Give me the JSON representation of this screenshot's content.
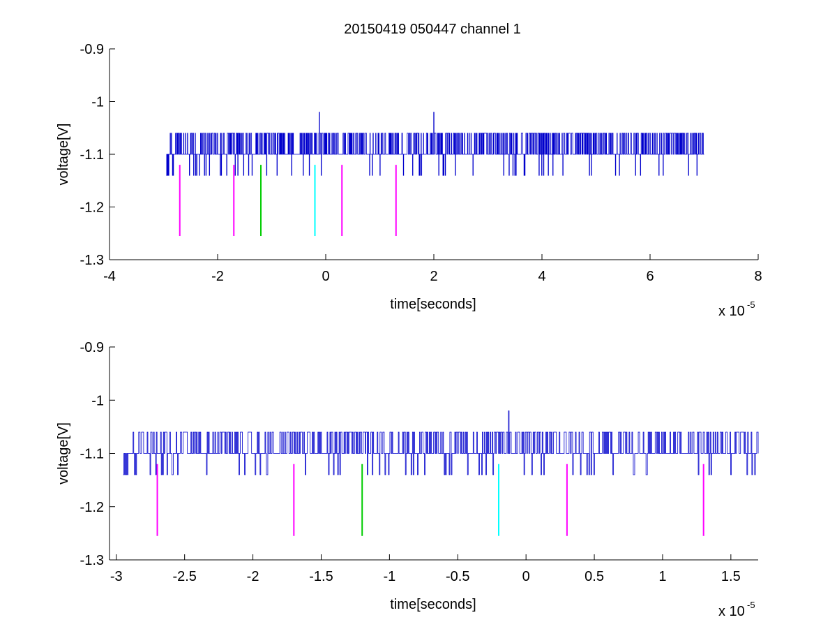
{
  "figure": {
    "title": "20150419 050447 channel 1"
  },
  "chart_data": [
    {
      "type": "line",
      "title": "20150419 050447 channel 1",
      "xlabel": "time[seconds]",
      "ylabel": "voltage[V]",
      "x_multiplier_base": "x 10",
      "x_multiplier_exp": "-5",
      "xlim": [
        -4e-05,
        8e-05
      ],
      "ylim": [
        -1.3,
        -0.9
      ],
      "xticks": [
        -4e-05,
        -2e-05,
        0,
        2e-05,
        4e-05,
        6e-05,
        8e-05
      ],
      "xtick_labels": [
        "-4",
        "-2",
        "0",
        "2",
        "4",
        "6",
        "8"
      ],
      "yticks": [
        -0.9,
        -1.0,
        -1.1,
        -1.2,
        -1.3
      ],
      "ytick_labels": [
        "-0.9",
        "-1",
        "-1.1",
        "-1.2",
        "-1.3"
      ],
      "grid": false,
      "series": [
        {
          "color": "#0000cc",
          "x_start": -2.95e-05,
          "x_end": 7e-05,
          "baseline": -1.1,
          "upper_level": -1.06,
          "lower_level": -1.14,
          "spikes": [
            {
              "x": -1.2e-06,
              "y": -1.02
            },
            {
              "x": 2e-05,
              "y": -1.02
            }
          ]
        }
      ],
      "markers": [
        {
          "x": -2.7e-05,
          "y_top": -1.12,
          "y_bottom": -1.255,
          "color": "#ff00ff"
        },
        {
          "x": -1.7e-05,
          "y_top": -1.12,
          "y_bottom": -1.255,
          "color": "#ff00ff"
        },
        {
          "x": -1.2e-05,
          "y_top": -1.12,
          "y_bottom": -1.255,
          "color": "#00cc00"
        },
        {
          "x": -2e-06,
          "y_top": -1.12,
          "y_bottom": -1.255,
          "color": "#00ffff"
        },
        {
          "x": 3e-06,
          "y_top": -1.12,
          "y_bottom": -1.255,
          "color": "#ff00ff"
        },
        {
          "x": 1.3e-05,
          "y_top": -1.12,
          "y_bottom": -1.255,
          "color": "#ff00ff"
        }
      ]
    },
    {
      "type": "line",
      "title": "",
      "xlabel": "time[seconds]",
      "ylabel": "voltage[V]",
      "x_multiplier_base": "x 10",
      "x_multiplier_exp": "-5",
      "xlim": [
        -3.05e-05,
        1.7e-05
      ],
      "ylim": [
        -1.3,
        -0.9
      ],
      "xticks": [
        -3e-05,
        -2.5e-05,
        -2e-05,
        -1.5e-05,
        -1e-05,
        -5e-06,
        0,
        5e-06,
        1e-05,
        1.5e-05
      ],
      "xtick_labels": [
        "-3",
        "-2.5",
        "-2",
        "-1.5",
        "-1",
        "-0.5",
        "0",
        "0.5",
        "1",
        "1.5"
      ],
      "yticks": [
        -0.9,
        -1.0,
        -1.1,
        -1.2,
        -1.3
      ],
      "ytick_labels": [
        "-0.9",
        "-1",
        "-1.1",
        "-1.2",
        "-1.3"
      ],
      "grid": false,
      "series": [
        {
          "color": "#0000cc",
          "x_start": -2.95e-05,
          "x_end": 1.7e-05,
          "baseline": -1.1,
          "upper_level": -1.06,
          "lower_level": -1.14,
          "spikes": [
            {
              "x": -1.3e-06,
              "y": -1.02
            }
          ]
        }
      ],
      "markers": [
        {
          "x": -2.7e-05,
          "y_top": -1.12,
          "y_bottom": -1.255,
          "color": "#ff00ff"
        },
        {
          "x": -1.7e-05,
          "y_top": -1.12,
          "y_bottom": -1.255,
          "color": "#ff00ff"
        },
        {
          "x": -1.2e-05,
          "y_top": -1.12,
          "y_bottom": -1.255,
          "color": "#00cc00"
        },
        {
          "x": -2e-06,
          "y_top": -1.12,
          "y_bottom": -1.255,
          "color": "#00ffff"
        },
        {
          "x": 3e-06,
          "y_top": -1.12,
          "y_bottom": -1.255,
          "color": "#ff00ff"
        },
        {
          "x": 1.3e-05,
          "y_top": -1.12,
          "y_bottom": -1.255,
          "color": "#ff00ff"
        }
      ]
    }
  ]
}
